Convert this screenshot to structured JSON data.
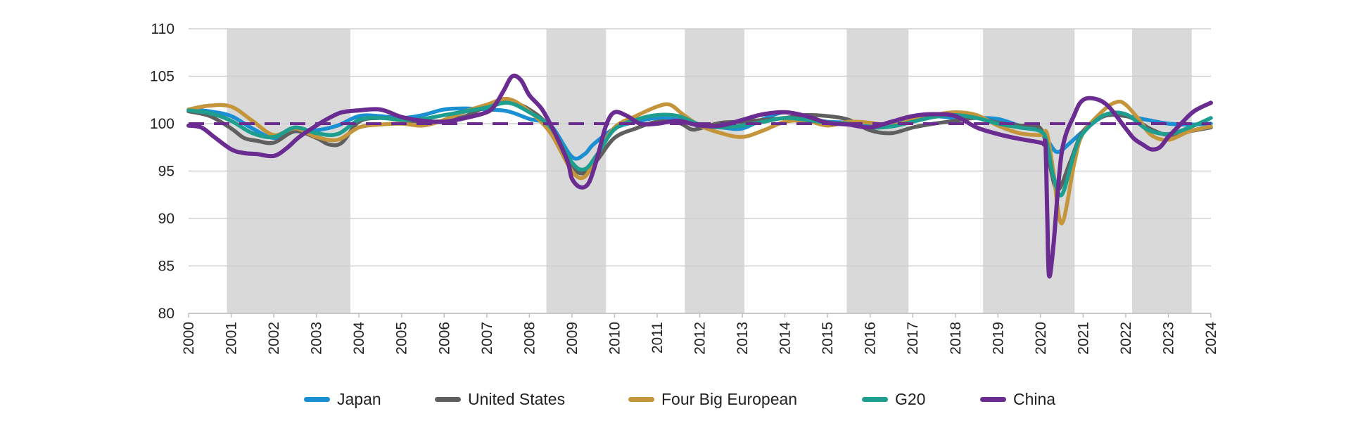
{
  "chart_data": {
    "type": "line",
    "title": "",
    "xlabel": "",
    "ylabel": "",
    "ylim": [
      80,
      110
    ],
    "yticks": [
      "110",
      "105",
      "100",
      "95",
      "90",
      "85",
      "80"
    ],
    "xlim": [
      2000,
      2024
    ],
    "xticks": [
      "2000",
      "2001",
      "2002",
      "2003",
      "2004",
      "2005",
      "2006",
      "2007",
      "2008",
      "2009",
      "2010",
      "2011",
      "2012",
      "2013",
      "2014",
      "2015",
      "2016",
      "2017",
      "2018",
      "2019",
      "2020",
      "2021",
      "2022",
      "2023",
      "2024"
    ],
    "grid": "horizontal",
    "reference_line": 100,
    "recession_periods": [
      [
        2000.9,
        2003.8
      ],
      [
        2008.4,
        2009.8
      ],
      [
        2011.65,
        2013.05
      ],
      [
        2015.45,
        2016.9
      ],
      [
        2018.65,
        2020.8
      ],
      [
        2022.15,
        2023.55
      ]
    ],
    "legend_position": "bottom",
    "series": [
      {
        "name": "Japan",
        "color": "#1a8fd1",
        "x": [
          2000,
          2000.5,
          2001,
          2001.5,
          2002,
          2002.5,
          2003,
          2003.5,
          2004,
          2004.5,
          2005,
          2005.5,
          2006,
          2006.5,
          2007,
          2007.5,
          2008,
          2008.5,
          2009,
          2009.3,
          2009.5,
          2010,
          2010.5,
          2011,
          2011.5,
          2012,
          2012.5,
          2013,
          2013.5,
          2014,
          2014.5,
          2015,
          2015.5,
          2016,
          2016.5,
          2017,
          2017.5,
          2018,
          2018.5,
          2019,
          2019.5,
          2020,
          2020.2,
          2020.4,
          2020.7,
          2021,
          2021.5,
          2022,
          2022.5,
          2023,
          2023.5,
          2024
        ],
        "y": [
          101.5,
          101.3,
          100.8,
          99.5,
          98.5,
          99.2,
          99.3,
          99.8,
          100.8,
          100.8,
          100.6,
          100.9,
          101.5,
          101.6,
          101.5,
          101.3,
          100.5,
          99.8,
          96.5,
          96.8,
          97.8,
          99.5,
          100.2,
          100.6,
          100.4,
          99.8,
          99.6,
          99.5,
          100.5,
          101.2,
          100.6,
          100.2,
          100.1,
          99.7,
          99.9,
          100.6,
          100.8,
          100.6,
          100.6,
          100.5,
          99.8,
          99.3,
          98,
          97,
          98,
          99.2,
          100.8,
          100.8,
          100.4,
          100,
          99.9,
          100
        ]
      },
      {
        "name": "United States",
        "color": "#5f5f5f",
        "x": [
          2000,
          2000.5,
          2001,
          2001.3,
          2001.6,
          2002,
          2002.5,
          2003,
          2003.3,
          2003.6,
          2004,
          2004.5,
          2005,
          2005.5,
          2006,
          2006.5,
          2007,
          2007.5,
          2008,
          2008.5,
          2009,
          2009.3,
          2009.6,
          2010,
          2010.5,
          2011,
          2011.5,
          2011.8,
          2012,
          2012.5,
          2013,
          2013.5,
          2014,
          2014.5,
          2015,
          2015.5,
          2016,
          2016.5,
          2017,
          2017.5,
          2018,
          2018.5,
          2019,
          2019.5,
          2020,
          2020.2,
          2020.4,
          2020.7,
          2021,
          2021.5,
          2022,
          2022.3,
          2022.6,
          2023,
          2023.5,
          2024
        ],
        "y": [
          101.3,
          100.8,
          99.5,
          98.5,
          98.2,
          98,
          99.2,
          98.5,
          97.8,
          98,
          100.2,
          100.6,
          100.4,
          100.2,
          100.3,
          100.8,
          101.8,
          102.3,
          101.5,
          99.5,
          95.5,
          94.8,
          96.2,
          98.5,
          99.5,
          100.2,
          100.1,
          99.4,
          99.5,
          100.1,
          100.2,
          100.4,
          100.6,
          100.9,
          100.8,
          100.4,
          99.3,
          99,
          99.6,
          100,
          100.3,
          100.6,
          100.1,
          99.8,
          99.5,
          96,
          93,
          96,
          99.2,
          100.8,
          100.8,
          100.2,
          99.4,
          98.8,
          99.2,
          99.6
        ]
      },
      {
        "name": "Four Big European",
        "color": "#c4953a",
        "x": [
          2000,
          2000.5,
          2001,
          2001.5,
          2002,
          2002.5,
          2003,
          2003.5,
          2004,
          2004.5,
          2005,
          2005.5,
          2006,
          2006.5,
          2007,
          2007.5,
          2008,
          2008.5,
          2009,
          2009.3,
          2009.6,
          2010,
          2010.5,
          2011,
          2011.3,
          2011.6,
          2012,
          2012.5,
          2013,
          2013.5,
          2014,
          2014.5,
          2015,
          2015.5,
          2016,
          2016.5,
          2017,
          2017.5,
          2018,
          2018.5,
          2019,
          2019.5,
          2020,
          2020.15,
          2020.3,
          2020.5,
          2020.8,
          2021,
          2021.5,
          2021.8,
          2022,
          2022.3,
          2022.6,
          2023,
          2023.5,
          2024
        ],
        "y": [
          101.5,
          101.9,
          101.8,
          100.3,
          98.8,
          99.5,
          98.6,
          98.3,
          99.6,
          99.9,
          100,
          99.8,
          100.4,
          101.3,
          102,
          102.6,
          101.3,
          99,
          95,
          94.4,
          96.8,
          99.6,
          100.8,
          101.8,
          102,
          101,
          99.8,
          99,
          98.6,
          99.3,
          100.2,
          100.3,
          99.8,
          100.2,
          100.1,
          99.8,
          100.4,
          100.9,
          101.2,
          100.9,
          99.8,
          99,
          98.8,
          99,
          95,
          89.5,
          96,
          99,
          101.5,
          102.3,
          102,
          100.5,
          98.8,
          98.3,
          99.2,
          99.7
        ]
      },
      {
        "name": "G20",
        "color": "#1e9e8f",
        "x": [
          2000,
          2000.5,
          2001,
          2001.5,
          2002,
          2002.5,
          2003,
          2003.5,
          2004,
          2004.5,
          2005,
          2005.5,
          2006,
          2006.5,
          2007,
          2007.5,
          2008,
          2008.5,
          2009,
          2009.3,
          2009.6,
          2010,
          2010.5,
          2011,
          2011.5,
          2012,
          2012.5,
          2013,
          2013.5,
          2014,
          2014.5,
          2015,
          2015.5,
          2016,
          2016.5,
          2017,
          2017.5,
          2018,
          2018.5,
          2019,
          2019.5,
          2020,
          2020.15,
          2020.3,
          2020.5,
          2020.8,
          2021,
          2021.5,
          2022,
          2022.5,
          2023,
          2023.5,
          2024
        ],
        "y": [
          101.4,
          101.1,
          100.3,
          99,
          98.6,
          99.6,
          99,
          98.9,
          100.4,
          100.6,
          100.4,
          100.5,
          100.9,
          101.3,
          101.7,
          102.2,
          101.2,
          99.6,
          95.9,
          95.2,
          96.8,
          99.4,
          100.4,
          100.9,
          100.8,
          99.9,
          99.6,
          99.8,
          100.2,
          100.6,
          100.4,
          100.1,
          100,
          99.6,
          99.7,
          100.2,
          100.7,
          100.9,
          100.6,
          100,
          99.6,
          99.2,
          98,
          94.5,
          92.5,
          97,
          99,
          100.9,
          101,
          99.4,
          98.9,
          99.6,
          100.6
        ]
      },
      {
        "name": "China",
        "color": "#6a2c91",
        "x": [
          2000,
          2000.3,
          2000.6,
          2001,
          2001.3,
          2001.6,
          2002,
          2002.3,
          2002.6,
          2003,
          2003.3,
          2003.6,
          2004,
          2004.5,
          2005,
          2005.5,
          2006,
          2006.5,
          2007,
          2007.2,
          2007.4,
          2007.6,
          2007.8,
          2008,
          2008.3,
          2008.6,
          2008.9,
          2009,
          2009.2,
          2009.4,
          2009.6,
          2009.8,
          2010,
          2010.3,
          2010.6,
          2011,
          2011.5,
          2012,
          2012.5,
          2013,
          2013.5,
          2014,
          2014.5,
          2015,
          2015.5,
          2016,
          2016.5,
          2017,
          2017.5,
          2018,
          2018.5,
          2019,
          2019.5,
          2020,
          2020.08,
          2020.12,
          2020.16,
          2020.2,
          2020.3,
          2020.5,
          2020.8,
          2021,
          2021.3,
          2021.6,
          2022,
          2022.2,
          2022.4,
          2022.6,
          2022.8,
          2023,
          2023.3,
          2023.6,
          2024
        ],
        "y": [
          99.8,
          99.6,
          98.6,
          97.3,
          96.9,
          96.8,
          96.6,
          97.4,
          98.6,
          99.8,
          100.6,
          101.2,
          101.4,
          101.5,
          100.7,
          100.3,
          100.2,
          100.6,
          101.2,
          102,
          103.5,
          105,
          104.6,
          103,
          101.5,
          99,
          96,
          94.2,
          93.3,
          93.8,
          96.5,
          99.8,
          101.2,
          100.8,
          100,
          100,
          100.3,
          99.8,
          99.8,
          100.4,
          101,
          101.2,
          100.8,
          100.1,
          99.9,
          99.6,
          100.2,
          100.8,
          101,
          100.8,
          99.6,
          98.9,
          98.4,
          98,
          97.8,
          97.6,
          90,
          84,
          87,
          97,
          101,
          102.5,
          102.6,
          101.8,
          99.5,
          98.4,
          97.8,
          97.3,
          97.5,
          98.6,
          100,
          101.3,
          102.2
        ]
      }
    ]
  }
}
